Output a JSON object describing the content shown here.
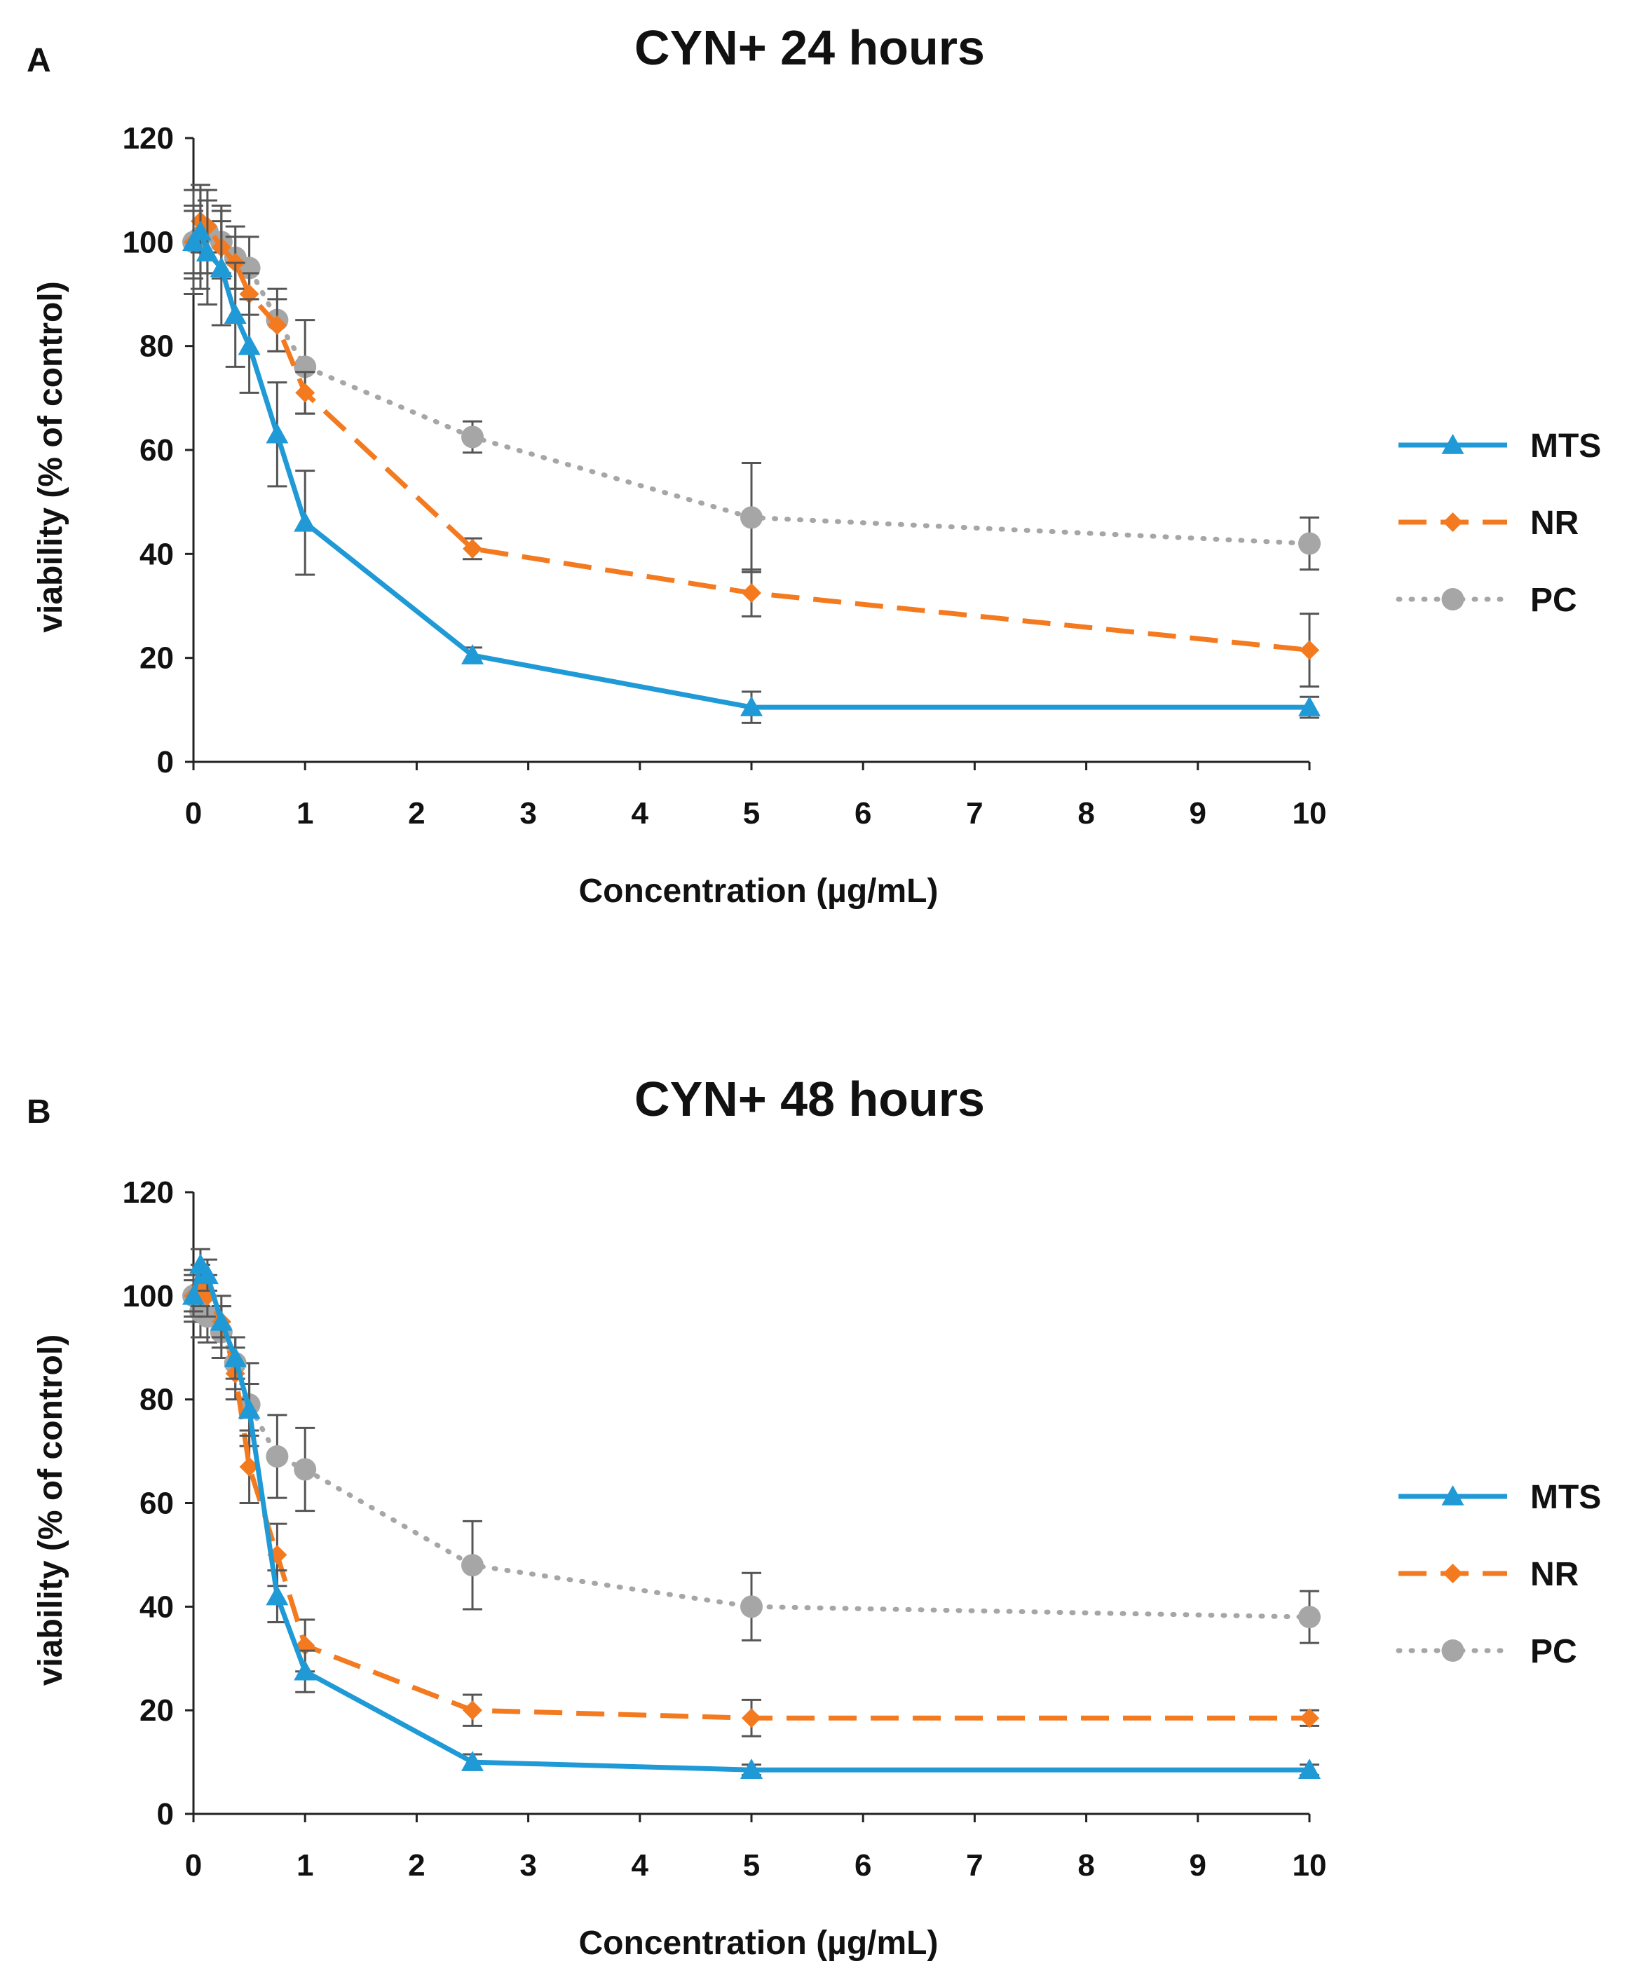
{
  "chart_data": [
    {
      "type": "line",
      "panel": "A",
      "title": "CYN+ 24 hours",
      "xlabel": "Concentration (µg/mL)",
      "ylabel": "viability  (% of control)",
      "xlim": [
        0,
        10
      ],
      "ylim": [
        0,
        120
      ],
      "xticks": [
        0,
        1,
        2,
        3,
        4,
        5,
        6,
        7,
        8,
        9,
        10
      ],
      "yticks": [
        0,
        20,
        40,
        60,
        80,
        100,
        120
      ],
      "legend_position": "right",
      "series": [
        {
          "name": "MTS",
          "color": "#1f9ad6",
          "line": "solid",
          "marker": "triangle",
          "x": [
            0,
            0.0625,
            0.125,
            0.25,
            0.375,
            0.5,
            0.75,
            1,
            2.5,
            5,
            10
          ],
          "y": [
            100,
            102,
            98,
            95,
            86,
            80,
            63,
            46,
            20.5,
            10.5,
            10.5
          ],
          "err": [
            7,
            8,
            10,
            11,
            10,
            9,
            10,
            10,
            1.5,
            3,
            2
          ]
        },
        {
          "name": "NR",
          "color": "#f47a20",
          "line": "dashed",
          "marker": "diamond",
          "x": [
            0,
            0.0625,
            0.125,
            0.25,
            0.375,
            0.5,
            0.75,
            1,
            2.5,
            5,
            10
          ],
          "y": [
            100,
            104,
            103,
            99,
            96,
            90,
            84,
            71,
            41,
            32.5,
            21.5
          ],
          "err": [
            6,
            6,
            5,
            5,
            5,
            4,
            5,
            4,
            2,
            4.5,
            7
          ]
        },
        {
          "name": "PC",
          "color": "#a6a6a6",
          "line": "dotted",
          "marker": "circle",
          "x": [
            0,
            0.0625,
            0.125,
            0.25,
            0.375,
            0.5,
            0.75,
            1,
            2.5,
            5,
            10
          ],
          "y": [
            100,
            101,
            102,
            100,
            97,
            95,
            85,
            76,
            62.5,
            47,
            42
          ],
          "err": [
            10,
            10,
            8,
            7,
            6,
            6,
            6,
            9,
            3,
            10.5,
            5
          ]
        }
      ]
    },
    {
      "type": "line",
      "panel": "B",
      "title": "CYN+ 48 hours",
      "xlabel": "Concentration (µg/mL)",
      "ylabel": "viability  (% of control)",
      "xlim": [
        0,
        10
      ],
      "ylim": [
        0,
        120
      ],
      "xticks": [
        0,
        1,
        2,
        3,
        4,
        5,
        6,
        7,
        8,
        9,
        10
      ],
      "yticks": [
        0,
        20,
        40,
        60,
        80,
        100,
        120
      ],
      "legend_position": "right",
      "series": [
        {
          "name": "MTS",
          "color": "#1f9ad6",
          "line": "solid",
          "marker": "triangle",
          "x": [
            0,
            0.0625,
            0.125,
            0.25,
            0.375,
            0.5,
            0.75,
            1,
            2.5,
            5,
            10
          ],
          "y": [
            100,
            106,
            104,
            95,
            88,
            78,
            42,
            27.5,
            10,
            8.5,
            8.5
          ],
          "err": [
            3,
            3,
            3,
            3,
            4,
            5,
            5,
            4,
            1.5,
            1,
            1
          ]
        },
        {
          "name": "NR",
          "color": "#f47a20",
          "line": "dashed",
          "marker": "diamond",
          "x": [
            0,
            0.0625,
            0.125,
            0.25,
            0.375,
            0.5,
            0.75,
            1,
            2.5,
            5,
            10
          ],
          "y": [
            100,
            102,
            100,
            95,
            85,
            67,
            50,
            32.5,
            20,
            18.5,
            18.5
          ],
          "err": [
            4,
            4,
            4,
            5,
            5,
            7,
            6,
            5,
            3,
            3.5,
            1.5
          ]
        },
        {
          "name": "PC",
          "color": "#a6a6a6",
          "line": "dotted",
          "marker": "circle",
          "x": [
            0,
            0.0625,
            0.125,
            0.25,
            0.375,
            0.5,
            0.75,
            1,
            2.5,
            5,
            10
          ],
          "y": [
            100,
            97,
            96,
            93,
            87,
            79,
            69,
            66.5,
            48,
            40,
            38
          ],
          "err": [
            5,
            5,
            5,
            5,
            5,
            8,
            8,
            8,
            8.5,
            6.5,
            5
          ]
        }
      ]
    }
  ]
}
